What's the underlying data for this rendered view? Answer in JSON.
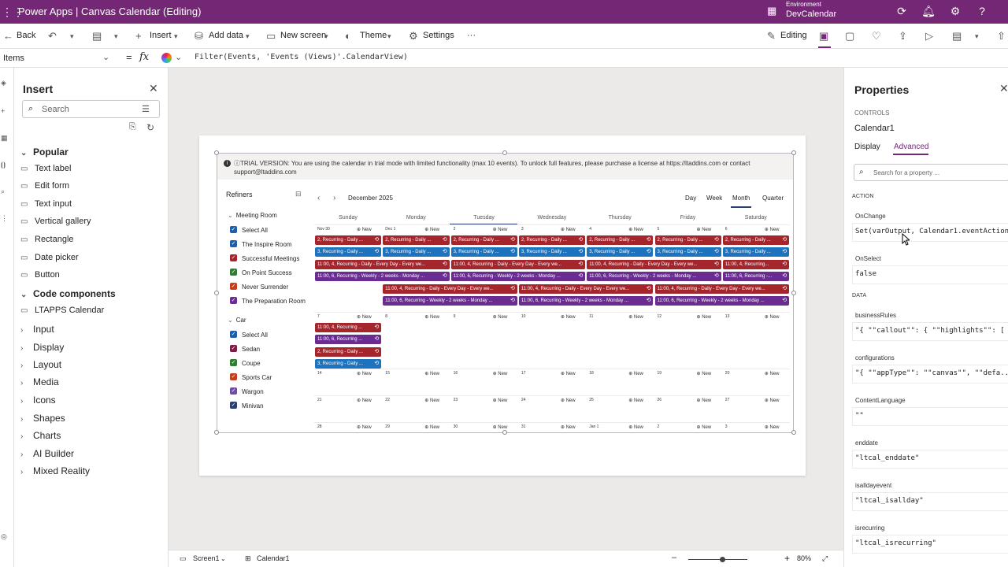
{
  "topbar": {
    "app_title": "Power Apps  |  Canvas Calendar (Editing)",
    "env_label": "Environment",
    "env_name": "DevCalendar"
  },
  "commands": {
    "back": "Back",
    "insert": "Insert",
    "add_data": "Add data",
    "new_screen": "New screen",
    "theme": "Theme",
    "settings": "Settings",
    "more": "···",
    "editing": "Editing"
  },
  "formula_bar": {
    "property": "Items",
    "formula": "Filter(Events, 'Events (Views)'.CalendarView)"
  },
  "insert_panel": {
    "title": "Insert",
    "search_placeholder": "Search",
    "items": [
      {
        "label": "Popular",
        "type": "category",
        "expanded": true
      },
      {
        "label": "Text label",
        "type": "item",
        "icon": "text-label-icon"
      },
      {
        "label": "Edit form",
        "type": "item",
        "icon": "edit-form-icon"
      },
      {
        "label": "Text input",
        "type": "item",
        "icon": "text-input-icon"
      },
      {
        "label": "Vertical gallery",
        "type": "item",
        "icon": "gallery-icon"
      },
      {
        "label": "Rectangle",
        "type": "item",
        "icon": "rectangle-icon"
      },
      {
        "label": "Date picker",
        "type": "item",
        "icon": "date-picker-icon"
      },
      {
        "label": "Button",
        "type": "item",
        "icon": "button-icon"
      },
      {
        "label": "Code components",
        "type": "category",
        "expanded": true
      },
      {
        "label": "LTAPPS Calendar",
        "type": "item",
        "icon": "component-icon"
      },
      {
        "label": "Input",
        "type": "category"
      },
      {
        "label": "Display",
        "type": "category"
      },
      {
        "label": "Layout",
        "type": "category"
      },
      {
        "label": "Media",
        "type": "category"
      },
      {
        "label": "Icons",
        "type": "category"
      },
      {
        "label": "Shapes",
        "type": "category"
      },
      {
        "label": "Charts",
        "type": "category"
      },
      {
        "label": "AI Builder",
        "type": "category"
      },
      {
        "label": "Mixed Reality",
        "type": "category"
      }
    ]
  },
  "calendar": {
    "trial_text": "ⓘTRIAL VERSION: You are using the calendar in trial mode with limited functionality (max 10 events). To unlock full features, please purchase a license at https://ltaddins.com or contact support@ltaddins.com",
    "refiners_title": "Refiners",
    "month_label": "December 2025",
    "views": [
      "Day",
      "Week",
      "Month",
      "Quarter"
    ],
    "active_view": "Month",
    "weekdays": [
      "Sunday",
      "Monday",
      "Tuesday",
      "Wednesday",
      "Thursday",
      "Friday",
      "Saturday"
    ],
    "new_label": "New",
    "weeks": [
      [
        "Nov 30",
        "Dec 1",
        "2",
        "3",
        "4",
        "5",
        "6"
      ],
      [
        "7",
        "8",
        "9",
        "10",
        "11",
        "12",
        "13"
      ],
      [
        "14",
        "15",
        "16",
        "17",
        "18",
        "19",
        "20"
      ],
      [
        "21",
        "22",
        "23",
        "24",
        "25",
        "26",
        "27"
      ],
      [
        "28",
        "29",
        "30",
        "31",
        "Jan 1",
        "2",
        "3"
      ]
    ],
    "refiner_groups": [
      {
        "name": "Meeting Room",
        "items": [
          {
            "label": "Select All",
            "color": "#1e5fa5"
          },
          {
            "label": "The Inspire Room",
            "color": "#1e5fa5"
          },
          {
            "label": "Successful Meetings",
            "color": "#a4262c"
          },
          {
            "label": "On Point Success",
            "color": "#2e7d32"
          },
          {
            "label": "Never Surrender",
            "color": "#c43e1c"
          },
          {
            "label": "The Preparation Room",
            "color": "#6b2c91"
          }
        ]
      },
      {
        "name": "Car",
        "items": [
          {
            "label": "Select All",
            "color": "#1e5fa5"
          },
          {
            "label": "Sedan",
            "color": "#7b1f47"
          },
          {
            "label": "Coupe",
            "color": "#2e7d32"
          },
          {
            "label": "Sports Car",
            "color": "#c43e1c"
          },
          {
            "label": "Wargon",
            "color": "#6b4fa0"
          },
          {
            "label": "Minivan",
            "color": "#2a3f6d"
          }
        ]
      }
    ],
    "event_rows": [
      {
        "week": 0,
        "lane": 0,
        "color": "#a4262c",
        "segments": [
          {
            "start": 0,
            "span": 1,
            "text": "2, Recurring - Daily ..."
          },
          {
            "start": 1,
            "span": 1,
            "text": "2, Recurring - Daily ..."
          },
          {
            "start": 2,
            "span": 1,
            "text": "2, Recurring - Daily ..."
          },
          {
            "start": 3,
            "span": 1,
            "text": "2, Recurring - Daily ..."
          },
          {
            "start": 4,
            "span": 1,
            "text": "2, Recurring - Daily ..."
          },
          {
            "start": 5,
            "span": 1,
            "text": "2, Recurring - Daily ..."
          },
          {
            "start": 6,
            "span": 1,
            "text": "2, Recurring - Daily ..."
          }
        ]
      },
      {
        "week": 0,
        "lane": 1,
        "color": "#1e73be",
        "segments": [
          {
            "start": 0,
            "span": 1,
            "text": "3, Recurring - Daily ..."
          },
          {
            "start": 1,
            "span": 1,
            "text": "3, Recurring - Daily ..."
          },
          {
            "start": 2,
            "span": 1,
            "text": "3, Recurring - Daily ..."
          },
          {
            "start": 3,
            "span": 1,
            "text": "3, Recurring - Daily ..."
          },
          {
            "start": 4,
            "span": 1,
            "text": "3, Recurring - Daily ..."
          },
          {
            "start": 5,
            "span": 1,
            "text": "3, Recurring - Daily ..."
          },
          {
            "start": 6,
            "span": 1,
            "text": "3, Recurring - Daily ..."
          }
        ]
      },
      {
        "week": 0,
        "lane": 2,
        "color": "#a4262c",
        "segments": [
          {
            "start": 0,
            "span": 2,
            "text": "11:00, 4, Recurring - Daily - Every Day - Every we..."
          },
          {
            "start": 2,
            "span": 2,
            "text": "11:00, 4, Recurring - Daily - Every Day - Every we..."
          },
          {
            "start": 4,
            "span": 2,
            "text": "11:00, 4, Recurring - Daily - Every Day - Every we..."
          },
          {
            "start": 6,
            "span": 1,
            "text": "11:00, 4, Recurring..."
          }
        ]
      },
      {
        "week": 0,
        "lane": 3,
        "color": "#6b2c91",
        "segments": [
          {
            "start": 0,
            "span": 2,
            "text": "11:00, 6, Recurring - Weekly - 2 weeks - Monday ..."
          },
          {
            "start": 2,
            "span": 2,
            "text": "11:00, 6, Recurring - Weekly - 2 weeks - Monday ..."
          },
          {
            "start": 4,
            "span": 2,
            "text": "11:00, 6, Recurring - Weekly - 2 weeks - Monday ..."
          },
          {
            "start": 6,
            "span": 1,
            "text": "11:00, 6, Recurring -..."
          }
        ]
      },
      {
        "week": 0,
        "lane": 4,
        "color": "#a4262c",
        "segments": [
          {
            "start": 1,
            "span": 2,
            "text": "11:00, 4, Recurring - Daily - Every Day - Every we..."
          },
          {
            "start": 3,
            "span": 2,
            "text": "11:00, 4, Recurring - Daily - Every Day - Every we..."
          },
          {
            "start": 5,
            "span": 2,
            "text": "11:00, 4, Recurring - Daily - Every Day - Every we..."
          }
        ]
      },
      {
        "week": 0,
        "lane": 5,
        "color": "#6b2c91",
        "segments": [
          {
            "start": 1,
            "span": 2,
            "text": "11:00, 6, Recurring - Weekly - 2 weeks - Monday ..."
          },
          {
            "start": 3,
            "span": 2,
            "text": "11:00, 6, Recurring - Weekly - 2 weeks - Monday ..."
          },
          {
            "start": 5,
            "span": 2,
            "text": "11:00, 6, Recurring - Weekly - 2 weeks - Monday ..."
          }
        ]
      },
      {
        "week": 1,
        "lane": 0,
        "color": "#a4262c",
        "segments": [
          {
            "start": 0,
            "span": 1,
            "text": "11:00, 4, Recurring ..."
          }
        ]
      },
      {
        "week": 1,
        "lane": 1,
        "color": "#6b2c91",
        "segments": [
          {
            "start": 0,
            "span": 1,
            "text": "11:00, 6, Recurring ..."
          }
        ]
      },
      {
        "week": 1,
        "lane": 2,
        "color": "#a4262c",
        "segments": [
          {
            "start": 0,
            "span": 1,
            "text": "2, Recurring - Daily ..."
          }
        ]
      },
      {
        "week": 1,
        "lane": 3,
        "color": "#1e73be",
        "segments": [
          {
            "start": 0,
            "span": 1,
            "text": "3, Recurring - Daily ..."
          }
        ]
      }
    ]
  },
  "properties": {
    "title": "Properties",
    "controls_label": "CONTROLS",
    "control_name": "Calendar1",
    "tabs": [
      "Display",
      "Advanced"
    ],
    "active_tab": "Advanced",
    "search_placeholder": "Search for a property ...",
    "sections": [
      {
        "name": "ACTION",
        "props": [
          {
            "label": "OnChange",
            "value": "Set(varOutput, Calendar1.eventAction)"
          },
          {
            "label": "OnSelect",
            "value": "false"
          }
        ]
      },
      {
        "name": "DATA",
        "props": [
          {
            "label": "businessRules",
            "value": "\"{ \"\"callout\"\": { \"\"highlights\"\": [ ..."
          },
          {
            "label": "configurations",
            "value": "\"{ \"\"appType\"\": \"\"canvas\"\", \"\"defa..."
          },
          {
            "label": "ContentLanguage",
            "value": "\"\""
          },
          {
            "label": "enddate",
            "value": "\"ltcal_enddate\""
          },
          {
            "label": "isalldayevent",
            "value": "\"ltcal_isallday\""
          },
          {
            "label": "isrecurring",
            "value": "\"ltcal_isrecurring\""
          }
        ]
      }
    ]
  },
  "status": {
    "screen": "Screen1",
    "control": "Calendar1",
    "zoom": "80%",
    "zoom_level": 0.57
  },
  "colors": {
    "brand": "#742774",
    "selection_accent": "#2a3f6d",
    "event_red": "#a4262c",
    "event_blue": "#1e73be",
    "event_purple": "#6b2c91"
  }
}
